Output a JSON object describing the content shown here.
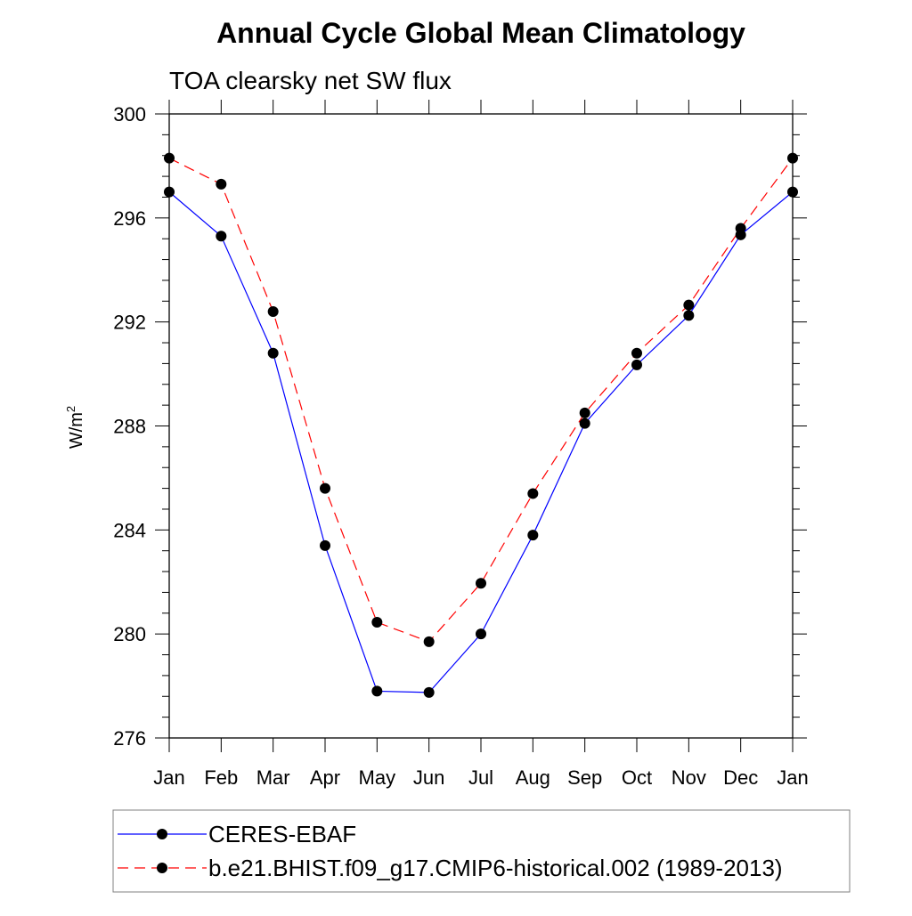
{
  "chart_data": {
    "type": "line",
    "title": "Annual Cycle Global Mean Climatology",
    "subtitle": "TOA clearsky net SW flux",
    "ylabel": "W/m",
    "ylabel_sup": "2",
    "xlabel": "",
    "categories": [
      "Jan",
      "Feb",
      "Mar",
      "Apr",
      "May",
      "Jun",
      "Jul",
      "Aug",
      "Sep",
      "Oct",
      "Nov",
      "Dec",
      "Jan"
    ],
    "ylim": [
      276,
      300
    ],
    "yticks": [
      276,
      280,
      284,
      288,
      292,
      296,
      300
    ],
    "grid": false,
    "legend_position": "bottom",
    "series": [
      {
        "name": "CERES-EBAF",
        "color": "#0000ff",
        "line_style": "solid",
        "marker": "filled-circle",
        "values": [
          297.0,
          295.3,
          290.8,
          283.4,
          277.8,
          277.75,
          280.0,
          283.8,
          288.1,
          290.35,
          292.25,
          295.35,
          297.0
        ]
      },
      {
        "name": "b.e21.BHIST.f09_g17.CMIP6-historical.002 (1989-2013)",
        "color": "#ff0000",
        "line_style": "dashed",
        "marker": "filled-circle",
        "values": [
          298.3,
          297.3,
          292.4,
          285.6,
          280.45,
          279.7,
          281.95,
          285.4,
          288.5,
          290.8,
          292.65,
          295.6,
          298.3
        ]
      }
    ]
  }
}
